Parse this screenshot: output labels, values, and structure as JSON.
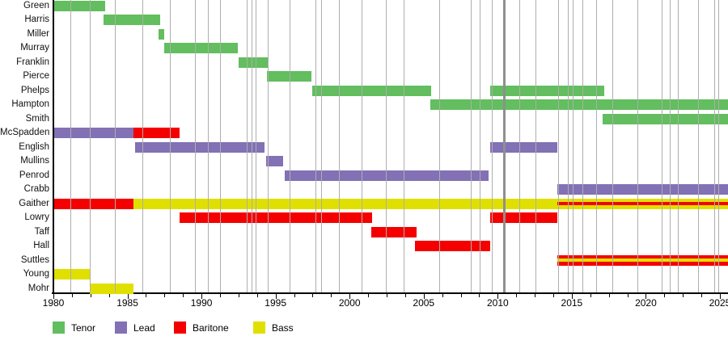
{
  "chart_data": {
    "type": "bar",
    "subtype": "timeline-gantt",
    "title": "",
    "xlabel": "",
    "ylabel": "",
    "grid": "vertical-event-lines",
    "legend_position": "bottom",
    "roles": {
      "Tenor": "#62be5e",
      "Lead": "#8271b5",
      "Baritone": "#f40000",
      "Bass": "#e0e000"
    },
    "legend": [
      {
        "label": "Tenor"
      },
      {
        "label": "Lead"
      },
      {
        "label": "Baritone"
      },
      {
        "label": "Bass"
      }
    ],
    "x_axis": {
      "start": 1980,
      "end": 2025,
      "major_tick_step": 5,
      "minor_tick_step": 1.25,
      "tick_labels": [
        "1980",
        "1985",
        "1990",
        "1995",
        "2000",
        "2005",
        "2010",
        "2015",
        "2020",
        "2025"
      ]
    },
    "members": [
      {
        "name": "Green",
        "segments": [
          {
            "role": "Tenor",
            "start": 1980,
            "end": 1983.5
          }
        ]
      },
      {
        "name": "Harris",
        "segments": [
          {
            "role": "Tenor",
            "start": 1983.4,
            "end": 1987.2
          }
        ]
      },
      {
        "name": "Miller",
        "segments": [
          {
            "role": "Tenor",
            "start": 1987.1,
            "end": 1987.5
          }
        ]
      },
      {
        "name": "Murray",
        "segments": [
          {
            "role": "Tenor",
            "start": 1987.5,
            "end": 1992.45
          }
        ]
      },
      {
        "name": "Franklin",
        "segments": [
          {
            "role": "Tenor",
            "start": 1992.5,
            "end": 1994.5
          }
        ]
      },
      {
        "name": "Pierce",
        "segments": [
          {
            "role": "Tenor",
            "start": 1994.4,
            "end": 1997.4
          }
        ]
      },
      {
        "name": "Phelps",
        "segments": [
          {
            "role": "Tenor",
            "start": 1997.5,
            "end": 2005.5
          },
          {
            "role": "Tenor",
            "start": 2009.5,
            "end": 2017.2
          }
        ]
      },
      {
        "name": "Hampton",
        "segments": [
          {
            "role": "Tenor",
            "start": 2005.45,
            "end": 2025.6
          }
        ]
      },
      {
        "name": "Smith",
        "segments": [
          {
            "role": "Tenor",
            "start": 2017.1,
            "end": 2025.6
          }
        ]
      },
      {
        "name": "McSpadden",
        "segments": [
          {
            "role": "Lead",
            "start": 1980,
            "end": 1985.4
          },
          {
            "role": "Baritone",
            "start": 1985.4,
            "end": 1988.5
          }
        ]
      },
      {
        "name": "English",
        "segments": [
          {
            "role": "Lead",
            "start": 1985.5,
            "end": 1994.25
          },
          {
            "role": "Lead",
            "start": 2009.5,
            "end": 2014.05
          }
        ]
      },
      {
        "name": "Mullins",
        "segments": [
          {
            "role": "Lead",
            "start": 1994.35,
            "end": 1995.5
          }
        ]
      },
      {
        "name": "Penrod",
        "segments": [
          {
            "role": "Lead",
            "start": 1995.6,
            "end": 2009.4
          }
        ]
      },
      {
        "name": "Crabb",
        "segments": [
          {
            "role": "Lead",
            "start": 2014.05,
            "end": 2025.6
          }
        ]
      },
      {
        "name": "Gaither",
        "segments": [
          {
            "role": "Baritone",
            "start": 1980,
            "end": 1985.4
          },
          {
            "role": "Bass",
            "start": 1985.4,
            "end": 2014.05
          },
          {
            "role": "Bass",
            "stripe": "Baritone",
            "start": 2014.05,
            "end": 2025.6
          }
        ]
      },
      {
        "name": "Lowry",
        "segments": [
          {
            "role": "Baritone",
            "start": 1988.5,
            "end": 2001.5
          },
          {
            "role": "Baritone",
            "start": 2009.5,
            "end": 2014.05
          }
        ]
      },
      {
        "name": "Taff",
        "segments": [
          {
            "role": "Baritone",
            "start": 2001.45,
            "end": 2004.5
          }
        ]
      },
      {
        "name": "Hall",
        "segments": [
          {
            "role": "Baritone",
            "start": 2004.4,
            "end": 2009.5
          }
        ]
      },
      {
        "name": "Suttles",
        "segments": [
          {
            "role": "Baritone",
            "stripe": "Bass",
            "start": 2014.05,
            "end": 2025.6
          }
        ]
      },
      {
        "name": "Young",
        "segments": [
          {
            "role": "Bass",
            "start": 1980,
            "end": 1982.45
          }
        ]
      },
      {
        "name": "Mohr",
        "segments": [
          {
            "role": "Bass",
            "start": 1982.45,
            "end": 1985.4
          }
        ]
      }
    ],
    "event_gridlines": [
      {
        "year": 1981.15
      },
      {
        "year": 1982.5
      },
      {
        "year": 1984.2
      },
      {
        "year": 1986.05
      },
      {
        "year": 1987.9
      },
      {
        "year": 1989.6
      },
      {
        "year": 1990.45
      },
      {
        "year": 1991.3
      },
      {
        "year": 1993.1
      },
      {
        "year": 1993.4
      },
      {
        "year": 1993.7
      },
      {
        "year": 1994.5
      },
      {
        "year": 1996.0
      },
      {
        "year": 1997.7
      },
      {
        "year": 1998.1
      },
      {
        "year": 1999.3
      },
      {
        "year": 2000.85
      },
      {
        "year": 2002.5
      },
      {
        "year": 2003.65
      },
      {
        "year": 2006.05
      },
      {
        "year": 2008.2
      },
      {
        "year": 2008.8
      },
      {
        "year": 2009.6
      },
      {
        "year": 2010.45,
        "thick": true
      },
      {
        "year": 2011.5
      },
      {
        "year": 2012.6
      },
      {
        "year": 2014.1
      },
      {
        "year": 2014.75
      },
      {
        "year": 2015.1
      },
      {
        "year": 2015.75
      },
      {
        "year": 2016.65
      },
      {
        "year": 2017.75
      },
      {
        "year": 2019.45
      },
      {
        "year": 2021.1
      },
      {
        "year": 2021.65
      },
      {
        "year": 2022.2
      },
      {
        "year": 2023.55
      },
      {
        "year": 2024.65
      },
      {
        "year": 2024.9
      }
    ],
    "colors": {
      "gridline": "#aeaeae",
      "gridline_thick": "#8f8f8f",
      "axis": "#000000",
      "background": "#ffffff"
    }
  }
}
